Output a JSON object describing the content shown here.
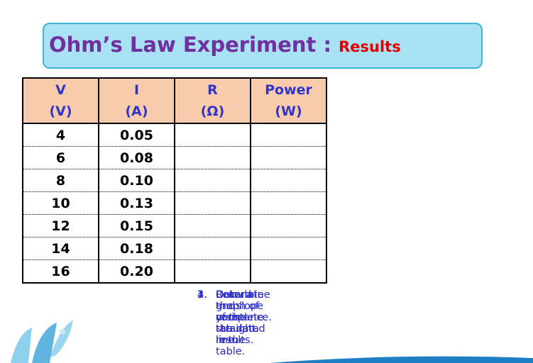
{
  "header": {
    "title": "Ohm’s Law Experiment :",
    "subtitle": "Results"
  },
  "table": {
    "columns": [
      {
        "name": "V",
        "unit": "(V)"
      },
      {
        "name": "I",
        "unit": "(A)"
      },
      {
        "name": "R",
        "unit": "(Ω)"
      },
      {
        "name": "Power",
        "unit": "(W)"
      }
    ],
    "rows": [
      [
        "4",
        "0.05"
      ],
      [
        "6",
        "0.08"
      ],
      [
        "8",
        "0.10"
      ],
      [
        "10",
        "0.13"
      ],
      [
        "12",
        "0.15"
      ],
      [
        "14",
        "0.18"
      ],
      [
        "16",
        "0.20"
      ]
    ]
  },
  "instructions": [
    {
      "number": "1.",
      "text": "Record and complete the data in the table."
    },
    {
      "number": "2.",
      "text": "Draw a graph of your tabulated results."
    },
    {
      "number": "3.",
      "text": "Calculate the slope of the straight line."
    },
    {
      "number": "4.",
      "text": "Determine the resistance."
    }
  ]
}
